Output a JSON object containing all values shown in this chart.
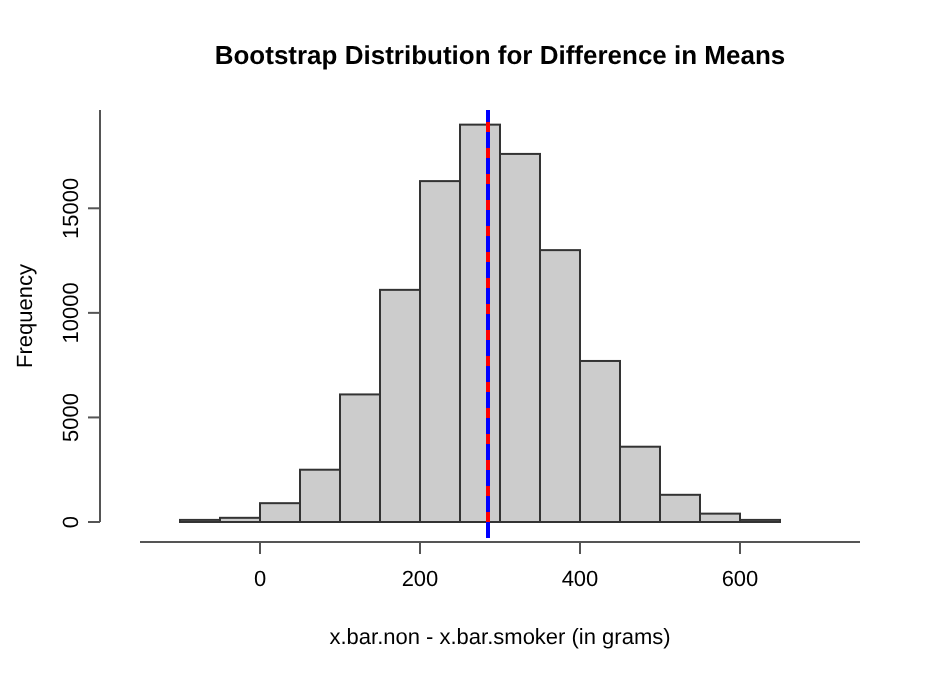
{
  "chart_data": {
    "type": "histogram",
    "title": "Bootstrap Distribution for Difference in Means",
    "xlabel": "x.bar.non - x.bar.smoker (in grams)",
    "ylabel": "Frequency",
    "bins": [
      -150,
      -100,
      -50,
      0,
      50,
      100,
      150,
      200,
      250,
      300,
      350,
      400,
      450,
      500,
      550,
      600,
      650,
      700,
      750
    ],
    "values": [
      0,
      100,
      200,
      900,
      2500,
      6100,
      11100,
      16300,
      19000,
      17600,
      13000,
      7700,
      3600,
      1300,
      400,
      100,
      0,
      0
    ],
    "color": "#cccccc",
    "xlim": [
      -150,
      750
    ],
    "ylim": [
      0,
      19700
    ],
    "xticks": [
      0,
      200,
      400,
      600
    ],
    "yticks": [
      0,
      5000,
      10000,
      15000
    ],
    "ref_lines": [
      {
        "axis": "x",
        "value": 285,
        "color": "#ff0000",
        "line_style": "solid"
      },
      {
        "axis": "x",
        "value": 285,
        "color": "#0000ff",
        "line_style": "dashed"
      }
    ]
  }
}
